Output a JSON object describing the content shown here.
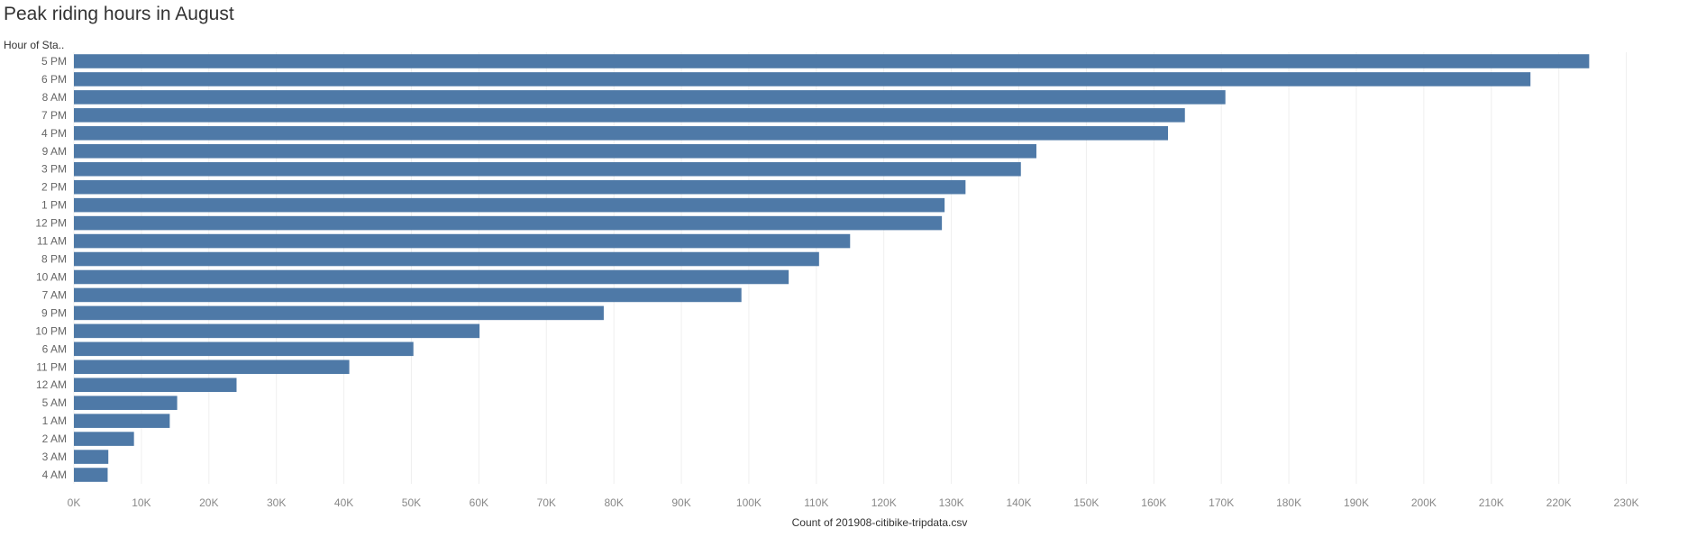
{
  "chart_data": {
    "type": "bar",
    "orientation": "horizontal",
    "title": "Peak riding hours in August",
    "ylabel": "Hour of Sta..",
    "xlabel": "Count of 201908-citibike-tripdata.csv",
    "xlim": [
      0,
      235000
    ],
    "grid": "vertical",
    "bar_color": "#4e79a7",
    "xticks": [
      {
        "value": 0,
        "label": "0K"
      },
      {
        "value": 10000,
        "label": "10K"
      },
      {
        "value": 20000,
        "label": "20K"
      },
      {
        "value": 30000,
        "label": "30K"
      },
      {
        "value": 40000,
        "label": "40K"
      },
      {
        "value": 50000,
        "label": "50K"
      },
      {
        "value": 60000,
        "label": "60K"
      },
      {
        "value": 70000,
        "label": "70K"
      },
      {
        "value": 80000,
        "label": "80K"
      },
      {
        "value": 90000,
        "label": "90K"
      },
      {
        "value": 100000,
        "label": "100K"
      },
      {
        "value": 110000,
        "label": "110K"
      },
      {
        "value": 120000,
        "label": "120K"
      },
      {
        "value": 130000,
        "label": "130K"
      },
      {
        "value": 140000,
        "label": "140K"
      },
      {
        "value": 150000,
        "label": "150K"
      },
      {
        "value": 160000,
        "label": "160K"
      },
      {
        "value": 170000,
        "label": "170K"
      },
      {
        "value": 180000,
        "label": "180K"
      },
      {
        "value": 190000,
        "label": "190K"
      },
      {
        "value": 200000,
        "label": "200K"
      },
      {
        "value": 210000,
        "label": "210K"
      },
      {
        "value": 220000,
        "label": "220K"
      },
      {
        "value": 230000,
        "label": "230K"
      }
    ],
    "categories": [
      "5 PM",
      "6 PM",
      "8 AM",
      "7 PM",
      "4 PM",
      "9 AM",
      "3 PM",
      "2 PM",
      "1 PM",
      "12 PM",
      "11 AM",
      "8 PM",
      "10 AM",
      "7 AM",
      "9 PM",
      "10 PM",
      "6 AM",
      "11 PM",
      "12 AM",
      "5 AM",
      "1 AM",
      "2 AM",
      "3 AM",
      "4 AM"
    ],
    "values": [
      224500,
      215800,
      170600,
      164600,
      162100,
      142600,
      140300,
      132100,
      129000,
      128600,
      115000,
      110400,
      105900,
      98900,
      78500,
      60100,
      50300,
      40800,
      24100,
      15300,
      14200,
      8900,
      5100,
      5000
    ]
  }
}
